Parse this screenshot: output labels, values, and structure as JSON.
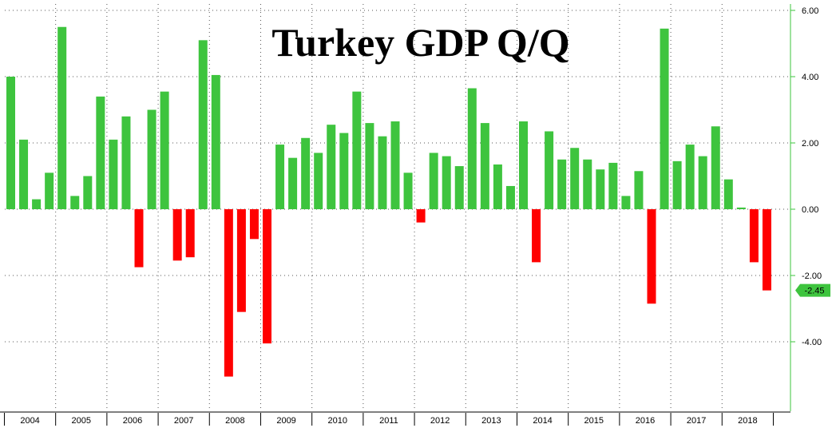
{
  "chart_data": {
    "type": "bar",
    "title": "Turkey GDP Q/Q",
    "xlabel": "",
    "ylabel": "",
    "ylim": [
      -6.2,
      6.2
    ],
    "yticks": [
      "6.00",
      "4.00",
      "2.00",
      "0.00",
      "-2.00",
      "-4.00"
    ],
    "last_value_label": "-2.45",
    "years": [
      "2004",
      "2005",
      "2006",
      "2007",
      "2008",
      "2009",
      "2010",
      "2011",
      "2012",
      "2013",
      "2014",
      "2015",
      "2016",
      "2017",
      "2018"
    ],
    "values": [
      4.0,
      2.1,
      0.3,
      1.1,
      5.5,
      0.4,
      1.0,
      3.4,
      2.1,
      2.8,
      -1.75,
      3.0,
      3.55,
      -1.55,
      -1.45,
      5.1,
      4.05,
      -5.05,
      -3.1,
      -0.9,
      -4.05,
      1.95,
      1.55,
      2.15,
      1.7,
      2.55,
      2.3,
      3.55,
      2.6,
      2.2,
      2.65,
      1.1,
      -0.4,
      1.7,
      1.6,
      1.3,
      3.65,
      2.6,
      1.35,
      0.7,
      2.65,
      -1.6,
      2.35,
      1.5,
      1.85,
      1.5,
      1.2,
      1.4,
      0.4,
      1.15,
      -2.85,
      5.45,
      1.45,
      1.95,
      1.6,
      2.5,
      0.9,
      0.05,
      -1.6,
      -2.45
    ],
    "grid": true,
    "colors": {
      "positive": "#3ec43e",
      "negative": "#ff0000",
      "label_badge": "#3ec43e",
      "grid": "#555555",
      "axis": "#3ec43e"
    }
  }
}
